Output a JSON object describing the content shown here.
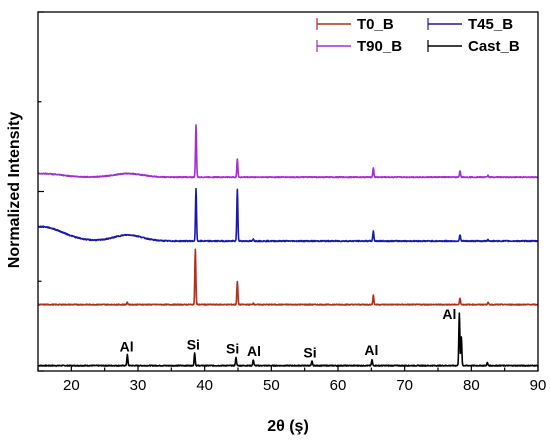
{
  "chart_data": {
    "type": "line",
    "xlabel": "2θ (ş)",
    "ylabel": "Normalized Intensity",
    "xlim": [
      15,
      90
    ],
    "ylim": [
      0,
      100
    ],
    "x_ticks": [
      20,
      30,
      40,
      50,
      60,
      70,
      80,
      90
    ],
    "y_ticks_labeled": false,
    "grid": false,
    "legend": {
      "placement": "top-right",
      "entries": [
        "T0_B",
        "T45_B",
        "T90_B",
        "Cast_B"
      ]
    },
    "series": [
      {
        "name": "Cast_B",
        "color": "#000000",
        "baseline": 1.5,
        "noise": 0.25,
        "peaks": [
          [
            28.4,
            3.0
          ],
          [
            38.5,
            3.5
          ],
          [
            44.7,
            2.2
          ],
          [
            47.3,
            1.6
          ],
          [
            56.1,
            1.2
          ],
          [
            65.1,
            1.6
          ],
          [
            78.2,
            14.5
          ],
          [
            78.5,
            8.0
          ],
          [
            82.4,
            0.8
          ]
        ]
      },
      {
        "name": "T0_B",
        "color": "#b03020",
        "baseline": 18.5,
        "noise": 0.25,
        "peaks": [
          [
            28.4,
            0.6
          ],
          [
            38.6,
            15.5
          ],
          [
            44.9,
            6.5
          ],
          [
            47.3,
            0.4
          ],
          [
            65.3,
            2.6
          ],
          [
            78.3,
            1.8
          ],
          [
            82.5,
            0.6
          ]
        ]
      },
      {
        "name": "T45_B",
        "color": "#1a1aa8",
        "baseline": 36.2,
        "noise": 0.3,
        "bump": [
          [
            15.5,
            4.0,
            4.5
          ],
          [
            28.5,
            1.7,
            3.0
          ]
        ],
        "peaks": [
          [
            38.7,
            14.5
          ],
          [
            44.9,
            14.5
          ],
          [
            47.3,
            0.5
          ],
          [
            65.3,
            2.8
          ],
          [
            78.3,
            1.8
          ],
          [
            82.5,
            0.5
          ]
        ]
      },
      {
        "name": "T90_B",
        "color": "#a030d0",
        "baseline": 54.0,
        "noise": 0.25,
        "bump": [
          [
            15.5,
            1.0,
            4.0
          ],
          [
            28.5,
            1.0,
            3.0
          ]
        ],
        "peaks": [
          [
            38.7,
            14.5
          ],
          [
            44.9,
            5.0
          ],
          [
            65.3,
            2.6
          ],
          [
            78.3,
            1.8
          ],
          [
            82.5,
            0.5
          ]
        ]
      }
    ],
    "annotations": [
      {
        "text": "Al",
        "x": 28.3,
        "y": 5.4
      },
      {
        "text": "Si",
        "x": 38.3,
        "y": 6.0
      },
      {
        "text": "Si",
        "x": 44.2,
        "y": 4.9
      },
      {
        "text": "Al",
        "x": 47.4,
        "y": 4.2
      },
      {
        "text": "Si",
        "x": 55.8,
        "y": 3.8
      },
      {
        "text": "Al",
        "x": 65.0,
        "y": 4.4
      },
      {
        "text": "Al",
        "x": 76.7,
        "y": 14.5
      }
    ]
  }
}
